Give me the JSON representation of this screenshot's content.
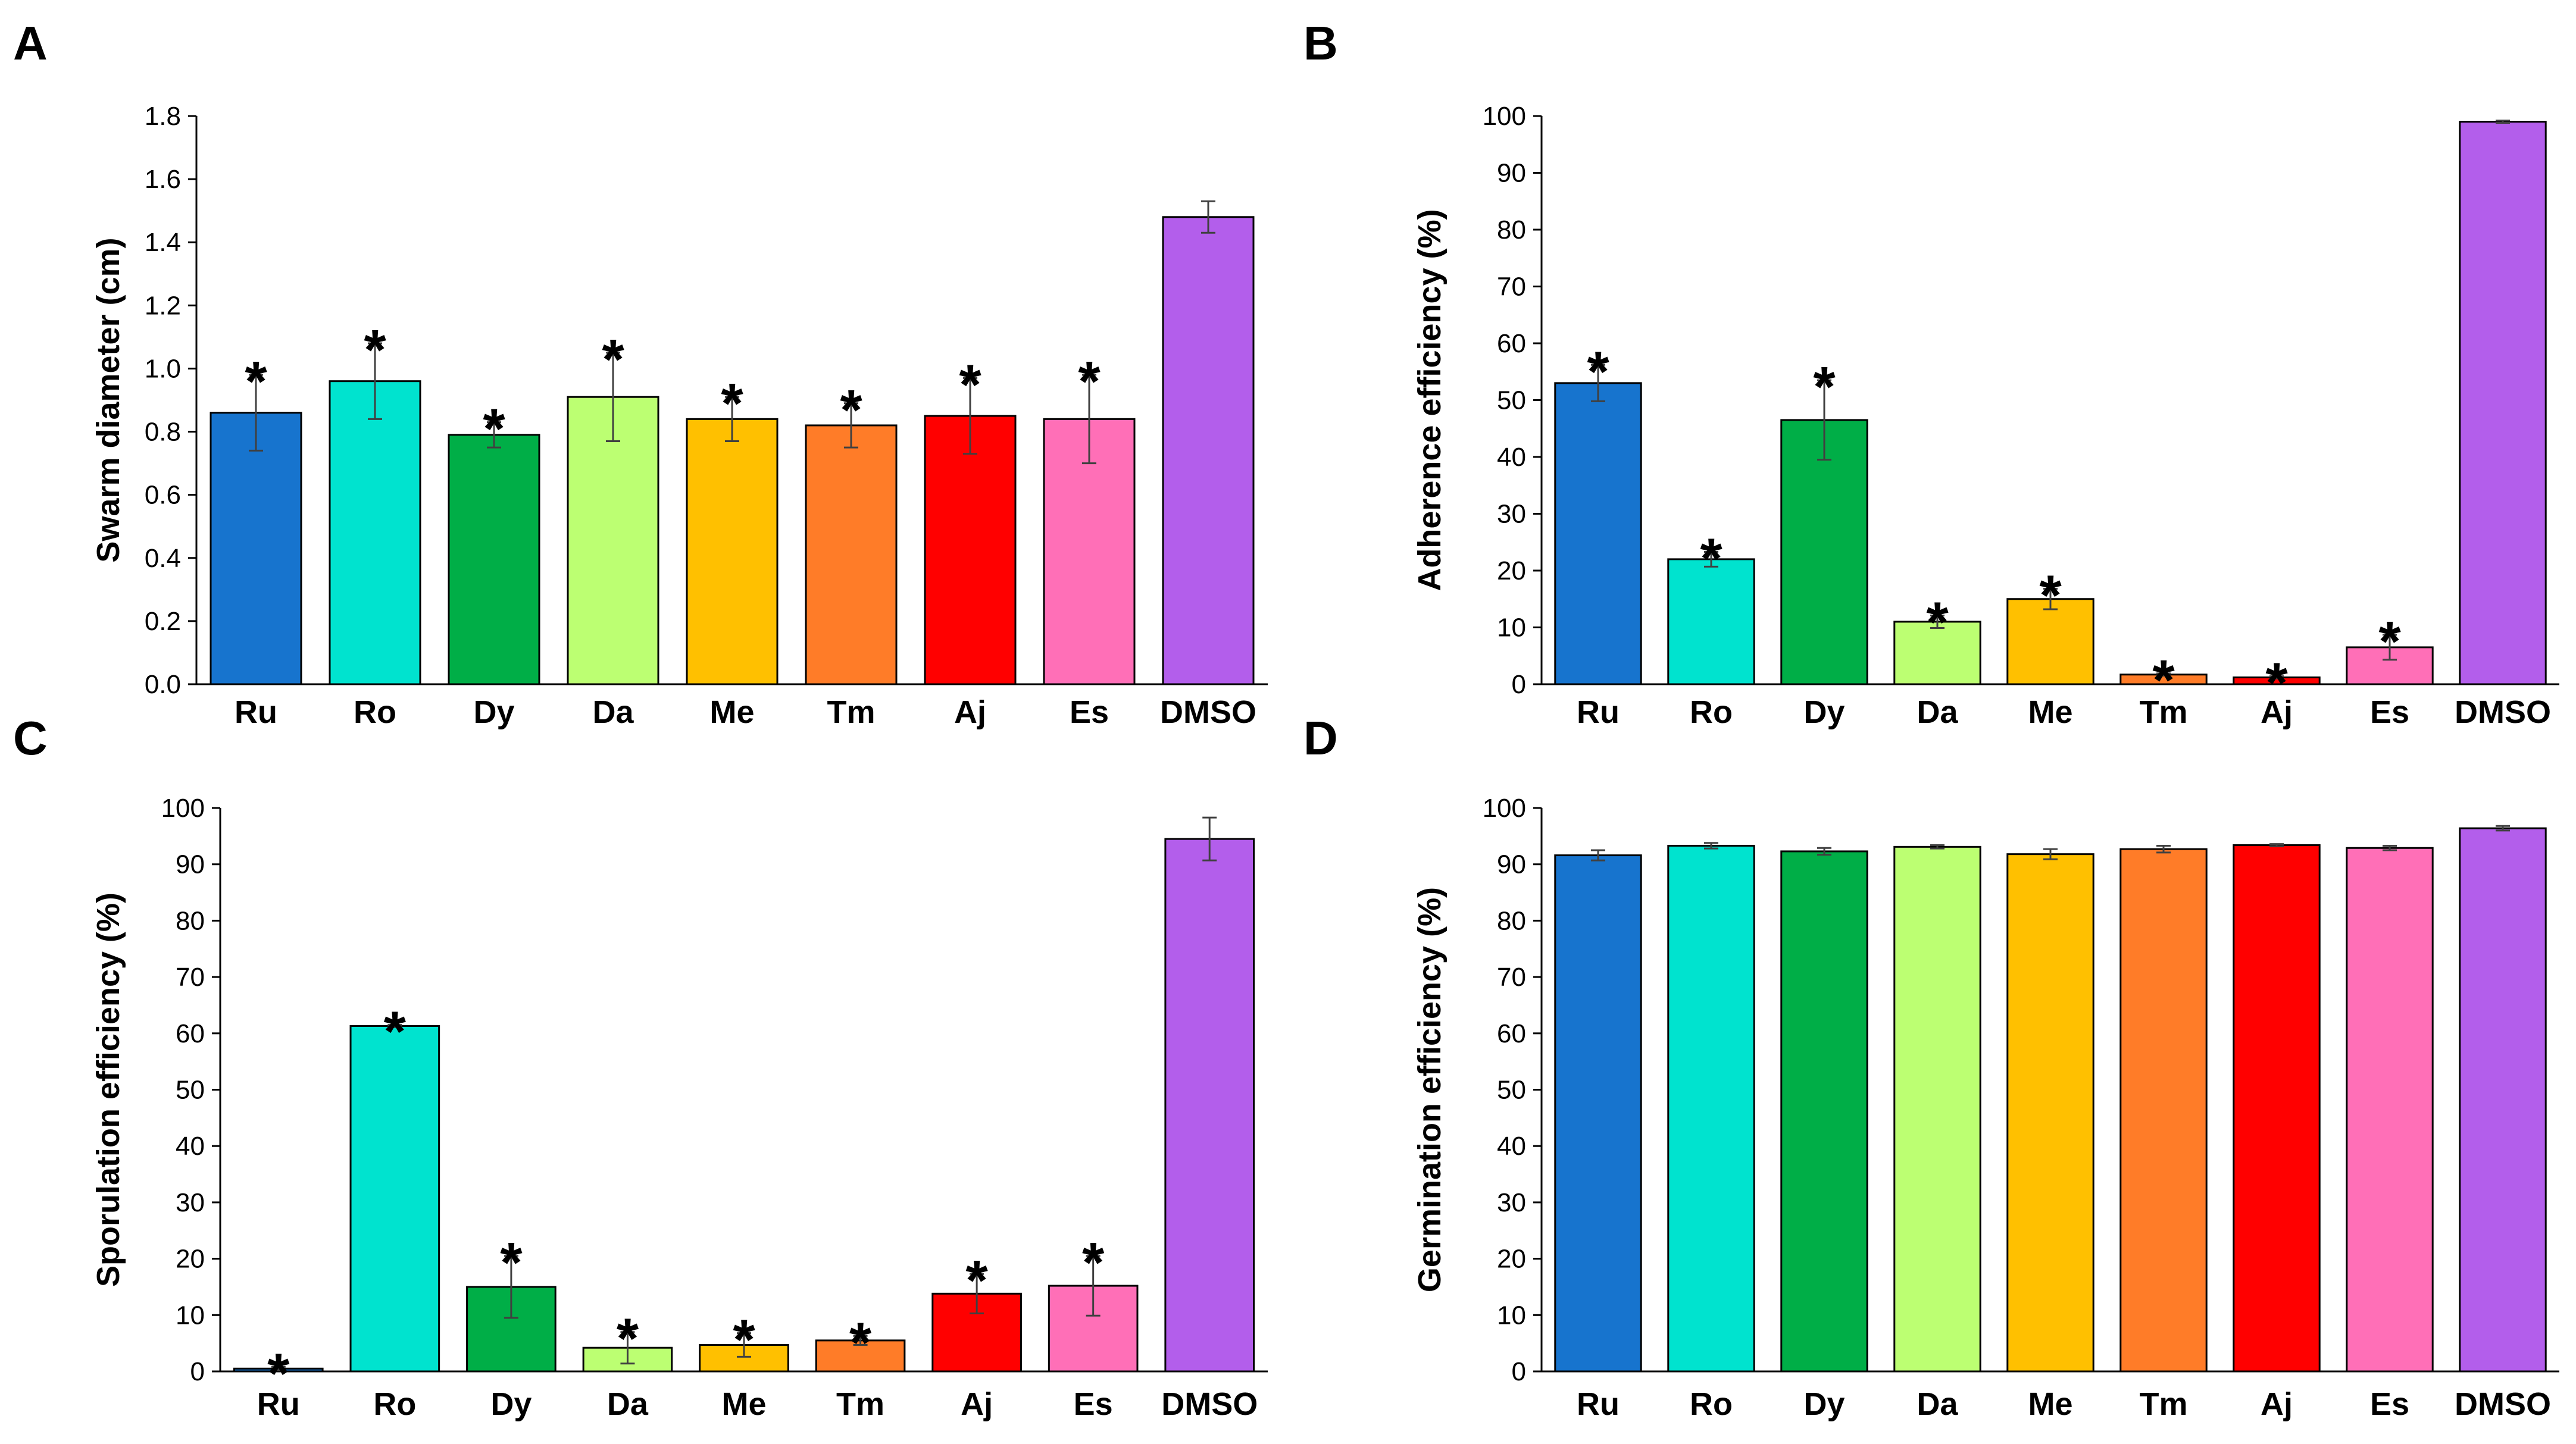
{
  "figure": {
    "panel_letters": [
      "A",
      "B",
      "C",
      "D"
    ]
  },
  "chart_data": [
    {
      "panel": "A",
      "type": "bar",
      "title": "",
      "xlabel": "",
      "ylabel": "Swarm diameter (cm)",
      "ylim": [
        0,
        1.8
      ],
      "yticks": [
        0.0,
        0.2,
        0.4,
        0.6,
        0.8,
        1.0,
        1.2,
        1.4,
        1.6,
        1.8
      ],
      "ytick_decimals": 1,
      "categories": [
        "Ru",
        "Ro",
        "Dy",
        "Da",
        "Me",
        "Tm",
        "Aj",
        "Es",
        "DMSO"
      ],
      "values": [
        0.86,
        0.96,
        0.79,
        0.91,
        0.84,
        0.82,
        0.85,
        0.84,
        1.48
      ],
      "errors": [
        0.12,
        0.12,
        0.04,
        0.14,
        0.07,
        0.07,
        0.12,
        0.14,
        0.05
      ],
      "significant": [
        true,
        true,
        true,
        true,
        true,
        true,
        true,
        true,
        false
      ],
      "significance_marker": "*",
      "grid": false
    },
    {
      "panel": "B",
      "type": "bar",
      "title": "",
      "xlabel": "",
      "ylabel": "Adherence efficiency (%)",
      "ylim": [
        0,
        100
      ],
      "yticks": [
        0,
        10,
        20,
        30,
        40,
        50,
        60,
        70,
        80,
        90,
        100
      ],
      "ytick_decimals": 0,
      "categories": [
        "Ru",
        "Ro",
        "Dy",
        "Da",
        "Me",
        "Tm",
        "Aj",
        "Es",
        "DMSO"
      ],
      "values": [
        53,
        22,
        46.5,
        11,
        15,
        1.7,
        1.2,
        6.5,
        99
      ],
      "errors": [
        3.2,
        1.3,
        7,
        1.1,
        1.8,
        0.2,
        0.2,
        2.2,
        0.2
      ],
      "significant": [
        true,
        true,
        true,
        true,
        true,
        true,
        true,
        true,
        false
      ],
      "significance_marker": "*",
      "grid": false
    },
    {
      "panel": "C",
      "type": "bar",
      "title": "",
      "xlabel": "",
      "ylabel": "Sporulation efficiency (%)",
      "ylim": [
        0,
        100
      ],
      "yticks": [
        0,
        10,
        20,
        30,
        40,
        50,
        60,
        70,
        80,
        90,
        100
      ],
      "ytick_decimals": 0,
      "categories": [
        "Ru",
        "Ro",
        "Dy",
        "Da",
        "Me",
        "Tm",
        "Aj",
        "Es",
        "DMSO"
      ],
      "values": [
        0.5,
        61.3,
        15,
        4.2,
        4.7,
        5.5,
        13.8,
        15.2,
        94.5
      ],
      "errors": [
        0.3,
        0.2,
        5.5,
        2.8,
        2.1,
        0.8,
        3.5,
        5.3,
        3.8
      ],
      "significant": [
        true,
        true,
        true,
        true,
        true,
        true,
        true,
        true,
        false
      ],
      "significance_marker": "*",
      "grid": false
    },
    {
      "panel": "D",
      "type": "bar",
      "title": "",
      "xlabel": "",
      "ylabel": "Germination efficiency (%)",
      "ylim": [
        0,
        100
      ],
      "yticks": [
        0,
        10,
        20,
        30,
        40,
        50,
        60,
        70,
        80,
        90,
        100
      ],
      "ytick_decimals": 0,
      "categories": [
        "Ru",
        "Ro",
        "Dy",
        "Da",
        "Me",
        "Tm",
        "Aj",
        "Es",
        "DMSO"
      ],
      "values": [
        91.6,
        93.3,
        92.3,
        93.1,
        91.8,
        92.7,
        93.4,
        92.9,
        96.4
      ],
      "errors": [
        0.9,
        0.5,
        0.6,
        0.3,
        0.9,
        0.6,
        0.2,
        0.4,
        0.4
      ],
      "significant": [
        false,
        false,
        false,
        false,
        false,
        false,
        false,
        false,
        false
      ],
      "significance_marker": "*",
      "grid": false
    }
  ],
  "colors": {
    "Ru": "#1774CE",
    "Ro": "#00E3CF",
    "Dy": "#00AE47",
    "Da": "#BCFF72",
    "Me": "#FFC000",
    "Tm": "#FF7C28",
    "Aj": "#FF0000",
    "Es": "#FF6FB7",
    "DMSO": "#B35EEB",
    "axis": "#000000",
    "error_bar": "#404040"
  }
}
